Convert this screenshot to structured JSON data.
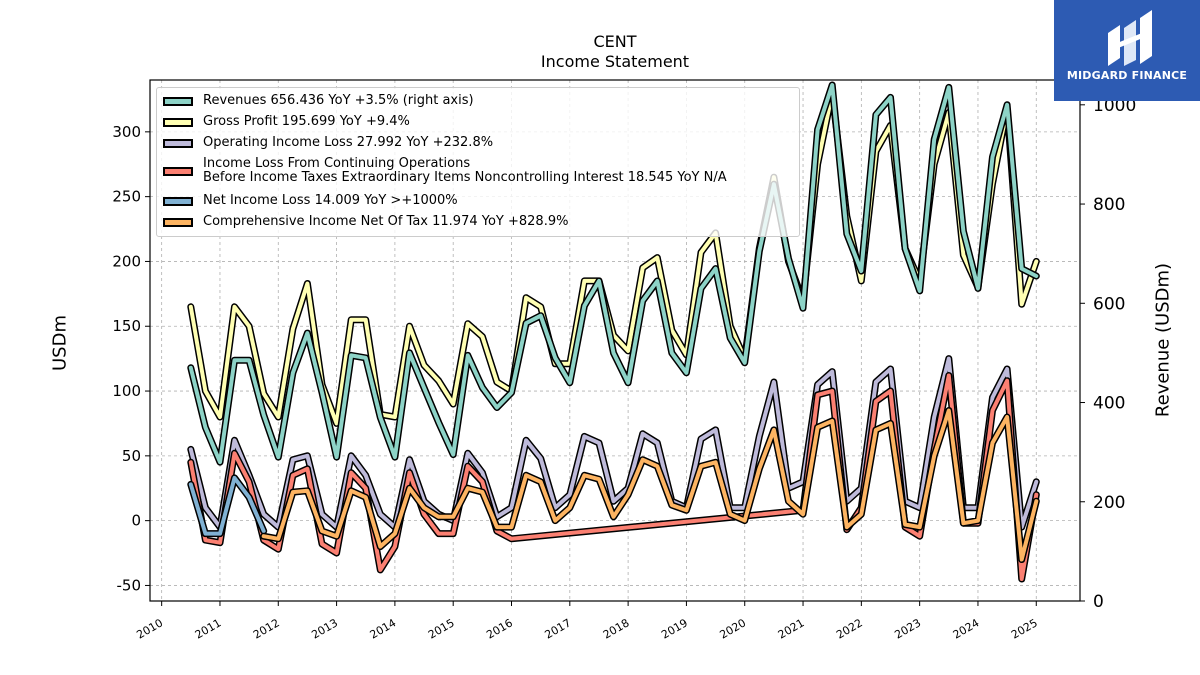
{
  "header": {
    "ticker": "CENT",
    "subtitle": "Income Statement"
  },
  "logo": {
    "text": "MIDGARD FINANCE",
    "icon": "mf-logo-icon"
  },
  "chart_data": {
    "type": "line",
    "title": "CENT",
    "subtitle": "Income Statement",
    "ylabel": "USDm",
    "ylabel_right": "Revenue (USDm)",
    "ylim": [
      -62,
      340
    ],
    "ylim_right": [
      0,
      1050
    ],
    "xlim": [
      2009.8,
      2025.75
    ],
    "yticks": [
      -50,
      0,
      50,
      100,
      150,
      200,
      250,
      300
    ],
    "yticks_right": [
      0,
      200,
      400,
      600,
      800,
      1000
    ],
    "xticks": [
      2010,
      2011,
      2012,
      2013,
      2014,
      2015,
      2016,
      2017,
      2018,
      2019,
      2020,
      2021,
      2022,
      2023,
      2024,
      2025
    ],
    "grid": true,
    "legend_position": "upper-left",
    "series": [
      {
        "name": "Revenues",
        "legend": "Revenues  656.436 YoY +3.5% (right axis)",
        "color": "#8dd3c7",
        "axis": "right",
        "x": [
          2010.5,
          2010.75,
          2011.0,
          2011.25,
          2011.5,
          2011.75,
          2012.0,
          2012.25,
          2012.5,
          2012.75,
          2013.0,
          2013.25,
          2013.5,
          2013.75,
          2014.0,
          2014.25,
          2014.5,
          2014.75,
          2015.0,
          2015.25,
          2015.5,
          2015.75,
          2016.0,
          2016.25,
          2016.5,
          2016.75,
          2017.0,
          2017.25,
          2017.5,
          2017.75,
          2018.0,
          2018.25,
          2018.5,
          2018.75,
          2019.0,
          2019.25,
          2019.5,
          2019.75,
          2020.0,
          2020.25,
          2020.5,
          2020.75,
          2021.0,
          2021.25,
          2021.5,
          2021.75,
          2022.0,
          2022.25,
          2022.5,
          2022.75,
          2023.0,
          2023.25,
          2023.5,
          2023.75,
          2024.0,
          2024.25,
          2024.5,
          2024.75,
          2025.0
        ],
        "values": [
          470,
          350,
          280,
          485,
          485,
          375,
          290,
          460,
          540,
          420,
          290,
          495,
          490,
          370,
          290,
          500,
          430,
          360,
          295,
          495,
          430,
          390,
          420,
          560,
          575,
          490,
          440,
          595,
          645,
          500,
          440,
          605,
          645,
          500,
          460,
          630,
          670,
          530,
          480,
          705,
          840,
          690,
          590,
          950,
          1040,
          740,
          665,
          980,
          1015,
          710,
          625,
          930,
          1035,
          745,
          630,
          895,
          1000,
          670,
          655
        ]
      },
      {
        "name": "Gross Profit",
        "legend": "Gross Profit  195.699 YoY +9.4%",
        "color": "#ffffb3",
        "axis": "left",
        "x": [
          2010.5,
          2010.75,
          2011.0,
          2011.25,
          2011.5,
          2011.75,
          2012.0,
          2012.25,
          2012.5,
          2012.75,
          2013.0,
          2013.25,
          2013.5,
          2013.75,
          2014.0,
          2014.25,
          2014.5,
          2014.75,
          2015.0,
          2015.25,
          2015.5,
          2015.75,
          2016.0,
          2016.25,
          2016.5,
          2016.75,
          2017.0,
          2017.25,
          2017.5,
          2017.75,
          2018.0,
          2018.25,
          2018.5,
          2018.75,
          2019.0,
          2019.25,
          2019.5,
          2019.75,
          2020.0,
          2020.25,
          2020.5,
          2020.75,
          2021.0,
          2021.25,
          2021.5,
          2021.75,
          2022.0,
          2022.25,
          2022.5,
          2022.75,
          2023.0,
          2023.25,
          2023.5,
          2023.75,
          2024.0,
          2024.25,
          2024.5,
          2024.75,
          2025.0
        ],
        "values": [
          165,
          100,
          80,
          165,
          150,
          98,
          80,
          148,
          183,
          105,
          75,
          155,
          155,
          82,
          80,
          150,
          120,
          108,
          90,
          152,
          142,
          107,
          100,
          172,
          165,
          121,
          121,
          185,
          185,
          143,
          131,
          195,
          203,
          147,
          128,
          207,
          222,
          150,
          125,
          210,
          265,
          200,
          170,
          275,
          330,
          235,
          185,
          285,
          305,
          210,
          185,
          275,
          315,
          205,
          180,
          260,
          318,
          167,
          200
        ]
      },
      {
        "name": "Operating Income Loss",
        "legend": "Operating Income Loss  27.992 YoY +232.8%",
        "color": "#bebada",
        "axis": "left",
        "x": [
          2010.5,
          2010.75,
          2011.0,
          2011.25,
          2011.5,
          2011.75,
          2012.0,
          2012.25,
          2012.5,
          2012.75,
          2013.0,
          2013.25,
          2013.5,
          2013.75,
          2014.0,
          2014.25,
          2014.5,
          2014.75,
          2015.0,
          2015.25,
          2015.5,
          2015.75,
          2016.0,
          2016.25,
          2016.5,
          2016.75,
          2017.0,
          2017.25,
          2017.5,
          2017.75,
          2018.0,
          2018.25,
          2018.5,
          2018.75,
          2019.0,
          2019.25,
          2019.5,
          2019.75,
          2020.0,
          2020.25,
          2020.5,
          2020.75,
          2021.0,
          2021.25,
          2021.5,
          2021.75,
          2022.0,
          2022.25,
          2022.5,
          2022.75,
          2023.0,
          2023.25,
          2023.5,
          2023.75,
          2024.0,
          2024.25,
          2024.5,
          2024.75,
          2025.0
        ],
        "values": [
          55,
          10,
          -5,
          62,
          35,
          5,
          -5,
          47,
          50,
          5,
          -5,
          50,
          35,
          5,
          -5,
          47,
          15,
          5,
          0,
          52,
          37,
          3,
          10,
          62,
          48,
          10,
          20,
          65,
          60,
          15,
          25,
          67,
          60,
          15,
          10,
          63,
          70,
          10,
          10,
          65,
          107,
          25,
          30,
          105,
          115,
          15,
          25,
          107,
          117,
          15,
          10,
          80,
          125,
          10,
          10,
          95,
          117,
          -5,
          30
        ]
      },
      {
        "name": "Income Loss From Continuing Operations Before Income Taxes Extraordinary Items Noncontrolling Interest",
        "legend": "Income Loss From Continuing Operations",
        "legend2": "Before Income Taxes Extraordinary Items Noncontrolling Interest  18.545 YoY N/A",
        "color": "#fb8072",
        "axis": "left",
        "x": [
          2010.5,
          2010.75,
          2011.0,
          2011.25,
          2011.5,
          2011.75,
          2012.0,
          2012.25,
          2012.5,
          2012.75,
          2013.0,
          2013.25,
          2013.5,
          2013.75,
          2014.0,
          2014.25,
          2014.5,
          2014.75,
          2015.0,
          2015.25,
          2015.5,
          2015.75,
          2016.0,
          2021.0,
          2021.25,
          2021.5,
          2021.75,
          2022.0,
          2022.25,
          2022.5,
          2022.75,
          2023.0,
          2023.25,
          2023.5,
          2023.75,
          2024.0,
          2024.25,
          2024.5,
          2024.75,
          2025.0
        ],
        "values": [
          45,
          -15,
          -17,
          52,
          30,
          -15,
          -22,
          35,
          40,
          -18,
          -25,
          37,
          25,
          -38,
          -20,
          37,
          5,
          -10,
          -10,
          42,
          30,
          -8,
          -14,
          8,
          97,
          100,
          -7,
          10,
          92,
          100,
          -5,
          -12,
          55,
          112,
          -2,
          -2,
          85,
          108,
          -45,
          20
        ]
      },
      {
        "name": "Net Income Loss",
        "legend": "Net Income Loss  14.009 YoY >+1000%",
        "color": "#80b1d3",
        "axis": "left",
        "x": [
          2010.5,
          2010.75,
          2011.0,
          2011.25,
          2011.5,
          2011.75
        ],
        "values": [
          28,
          -10,
          -10,
          33,
          18,
          -8
        ]
      },
      {
        "name": "Comprehensive Income Net Of Tax",
        "legend": "Comprehensive Income Net Of Tax  11.974 YoY +828.9%",
        "color": "#fdb462",
        "axis": "left",
        "x": [
          2011.75,
          2012.0,
          2012.25,
          2012.5,
          2012.75,
          2013.0,
          2013.25,
          2013.5,
          2013.75,
          2014.0,
          2014.25,
          2014.5,
          2014.75,
          2015.0,
          2015.25,
          2015.5,
          2015.75,
          2016.0,
          2016.25,
          2016.5,
          2016.75,
          2017.0,
          2017.25,
          2017.5,
          2017.75,
          2018.0,
          2018.25,
          2018.5,
          2018.75,
          2019.0,
          2019.25,
          2019.5,
          2019.75,
          2020.0,
          2020.25,
          2020.5,
          2020.75,
          2021.0,
          2021.25,
          2021.5,
          2021.75,
          2022.0,
          2022.25,
          2022.5,
          2022.75,
          2023.0,
          2023.25,
          2023.5,
          2023.75,
          2024.0,
          2024.25,
          2024.5,
          2024.75,
          2025.0
        ],
        "values": [
          -12,
          -14,
          22,
          23,
          -8,
          -12,
          23,
          18,
          -20,
          -10,
          25,
          10,
          3,
          3,
          25,
          22,
          -5,
          -5,
          35,
          30,
          0,
          10,
          35,
          32,
          3,
          20,
          47,
          42,
          12,
          8,
          42,
          45,
          5,
          0,
          40,
          70,
          15,
          5,
          72,
          77,
          -5,
          5,
          70,
          75,
          -3,
          -5,
          50,
          85,
          -2,
          0,
          60,
          80,
          -30,
          15
        ]
      }
    ]
  }
}
